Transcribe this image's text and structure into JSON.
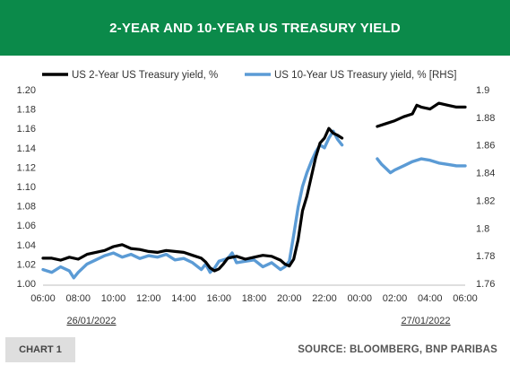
{
  "header": {
    "title": "2-YEAR AND 10-YEAR US TREASURY YIELD"
  },
  "footer": {
    "chart_tag": "CHART 1",
    "source": "SOURCE: BLOOMBERG, BNP PARIBAS"
  },
  "colors": {
    "header_bg": "#0b8a4a",
    "series_2y": "#000000",
    "series_10y": "#5b9bd5"
  },
  "chart_data": {
    "type": "line",
    "title": "2-YEAR AND 10-YEAR US TREASURY YIELD",
    "x_ticks": [
      "06:00",
      "08:00",
      "10:00",
      "12:00",
      "14:00",
      "16:00",
      "18:00",
      "20:00",
      "22:00",
      "00:00",
      "02:00",
      "04:00",
      "06:00"
    ],
    "date_labels": [
      "26/01/2022",
      "27/01/2022"
    ],
    "y_left": {
      "ticks": [
        "1.00",
        "1.02",
        "1.04",
        "1.06",
        "1.08",
        "1.10",
        "1.12",
        "1.14",
        "1.16",
        "1.18",
        "1.20"
      ],
      "range": [
        1.0,
        1.2
      ]
    },
    "y_right": {
      "ticks": [
        "1.76",
        "1.78",
        "1.8",
        "1.82",
        "1.84",
        "1.86",
        "1.88",
        "1.9"
      ],
      "range": [
        1.76,
        1.9
      ],
      "label": "RHS"
    },
    "grid": false,
    "legend_position": "top",
    "series": [
      {
        "name": "US 2-Year US Treasury yield, %",
        "axis": "left",
        "segments": [
          [
            [
              6.0,
              1.026
            ],
            [
              6.5,
              1.026
            ],
            [
              7.0,
              1.024
            ],
            [
              7.5,
              1.027
            ],
            [
              8.0,
              1.025
            ],
            [
              8.5,
              1.03
            ],
            [
              9.0,
              1.032
            ],
            [
              9.5,
              1.034
            ],
            [
              10.0,
              1.038
            ],
            [
              10.5,
              1.04
            ],
            [
              11.0,
              1.036
            ],
            [
              11.5,
              1.035
            ],
            [
              12.0,
              1.033
            ],
            [
              12.5,
              1.032
            ],
            [
              13.0,
              1.034
            ],
            [
              13.5,
              1.033
            ],
            [
              14.0,
              1.032
            ],
            [
              14.5,
              1.029
            ],
            [
              15.0,
              1.026
            ],
            [
              15.25,
              1.022
            ],
            [
              15.5,
              1.016
            ],
            [
              15.75,
              1.013
            ],
            [
              16.0,
              1.015
            ],
            [
              16.25,
              1.02
            ],
            [
              16.5,
              1.026
            ],
            [
              17.0,
              1.028
            ],
            [
              17.5,
              1.025
            ],
            [
              18.0,
              1.027
            ],
            [
              18.5,
              1.029
            ],
            [
              19.0,
              1.028
            ],
            [
              19.5,
              1.024
            ],
            [
              19.75,
              1.02
            ],
            [
              20.0,
              1.018
            ],
            [
              20.25,
              1.025
            ],
            [
              20.5,
              1.045
            ],
            [
              20.75,
              1.075
            ],
            [
              21.0,
              1.09
            ],
            [
              21.25,
              1.11
            ],
            [
              21.5,
              1.13
            ],
            [
              21.75,
              1.145
            ],
            [
              22.0,
              1.15
            ],
            [
              22.25,
              1.16
            ],
            [
              22.5,
              1.155
            ],
            [
              22.75,
              1.153
            ],
            [
              23.0,
              1.15
            ]
          ],
          [
            [
              25.0,
              1.162
            ],
            [
              25.5,
              1.165
            ],
            [
              26.0,
              1.168
            ],
            [
              26.5,
              1.172
            ],
            [
              27.0,
              1.175
            ],
            [
              27.25,
              1.184
            ],
            [
              27.5,
              1.182
            ],
            [
              28.0,
              1.18
            ],
            [
              28.5,
              1.186
            ],
            [
              29.0,
              1.184
            ],
            [
              29.5,
              1.182
            ],
            [
              30.0,
              1.182
            ]
          ]
        ]
      },
      {
        "name": "US 10-Year US Treasury yield, % [RHS]",
        "axis": "right",
        "segments": [
          [
            [
              6.0,
              1.77
            ],
            [
              6.5,
              1.768
            ],
            [
              7.0,
              1.772
            ],
            [
              7.5,
              1.769
            ],
            [
              7.75,
              1.764
            ],
            [
              8.0,
              1.768
            ],
            [
              8.5,
              1.774
            ],
            [
              9.0,
              1.777
            ],
            [
              9.5,
              1.78
            ],
            [
              10.0,
              1.782
            ],
            [
              10.5,
              1.779
            ],
            [
              11.0,
              1.781
            ],
            [
              11.5,
              1.778
            ],
            [
              12.0,
              1.78
            ],
            [
              12.5,
              1.779
            ],
            [
              13.0,
              1.781
            ],
            [
              13.5,
              1.777
            ],
            [
              14.0,
              1.778
            ],
            [
              14.5,
              1.775
            ],
            [
              15.0,
              1.77
            ],
            [
              15.25,
              1.774
            ],
            [
              15.5,
              1.768
            ],
            [
              15.75,
              1.771
            ],
            [
              16.0,
              1.776
            ],
            [
              16.5,
              1.778
            ],
            [
              16.75,
              1.782
            ],
            [
              17.0,
              1.775
            ],
            [
              17.5,
              1.776
            ],
            [
              18.0,
              1.777
            ],
            [
              18.5,
              1.772
            ],
            [
              19.0,
              1.775
            ],
            [
              19.5,
              1.77
            ],
            [
              19.75,
              1.772
            ],
            [
              20.0,
              1.776
            ],
            [
              20.25,
              1.795
            ],
            [
              20.5,
              1.815
            ],
            [
              20.75,
              1.83
            ],
            [
              21.0,
              1.84
            ],
            [
              21.25,
              1.848
            ],
            [
              21.5,
              1.855
            ],
            [
              21.75,
              1.86
            ],
            [
              22.0,
              1.858
            ],
            [
              22.25,
              1.865
            ],
            [
              22.5,
              1.87
            ],
            [
              22.75,
              1.864
            ],
            [
              23.0,
              1.86
            ]
          ],
          [
            [
              25.0,
              1.85
            ],
            [
              25.25,
              1.846
            ],
            [
              25.5,
              1.843
            ],
            [
              25.75,
              1.84
            ],
            [
              26.0,
              1.842
            ],
            [
              26.5,
              1.845
            ],
            [
              27.0,
              1.848
            ],
            [
              27.5,
              1.85
            ],
            [
              28.0,
              1.849
            ],
            [
              28.5,
              1.847
            ],
            [
              29.0,
              1.846
            ],
            [
              29.5,
              1.845
            ],
            [
              30.0,
              1.845
            ]
          ]
        ]
      }
    ]
  }
}
